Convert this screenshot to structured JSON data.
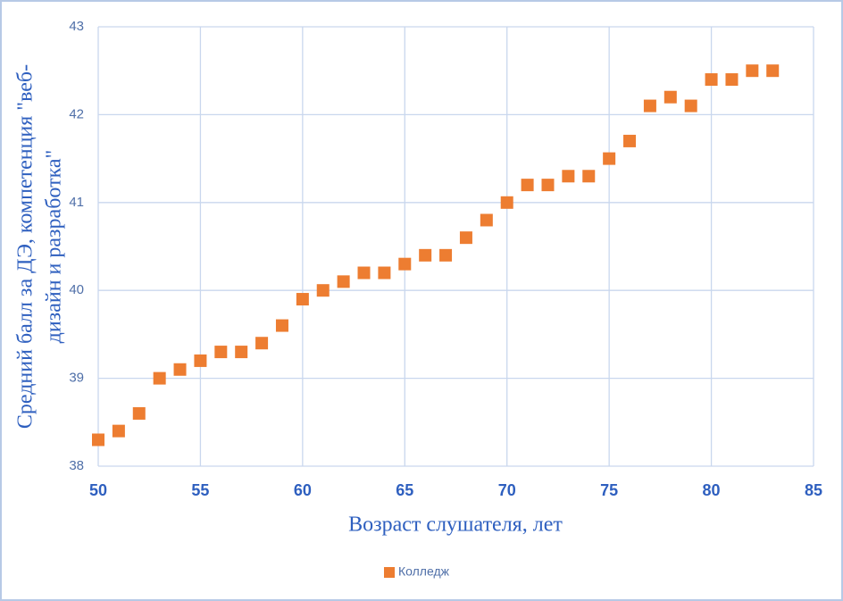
{
  "chart_data": {
    "type": "scatter",
    "xlabel": "Возраст слушателя,  лет",
    "ylabel": [
      "Средний балл за ДЭ, компетенция \"веб-",
      "дизайн и разработка\""
    ],
    "series": [
      {
        "name": "Колледж",
        "color": "#ed7d31",
        "x": [
          50,
          51,
          52,
          53,
          54,
          55,
          56,
          57,
          58,
          59,
          60,
          61,
          62,
          63,
          64,
          65,
          66,
          67,
          68,
          69,
          70,
          71,
          72,
          73,
          74,
          75,
          76,
          77,
          78,
          79,
          80,
          81,
          82,
          83
        ],
        "values": [
          38.3,
          38.4,
          38.6,
          39.0,
          39.1,
          39.2,
          39.3,
          39.3,
          39.4,
          39.6,
          39.9,
          40.0,
          40.1,
          40.2,
          40.2,
          40.3,
          40.4,
          40.4,
          40.6,
          40.8,
          41.0,
          41.2,
          41.2,
          41.3,
          41.3,
          41.5,
          41.7,
          42.1,
          42.2,
          42.1,
          42.4,
          42.4,
          42.5,
          42.5
        ]
      }
    ],
    "xlim": [
      50,
      85
    ],
    "xticks": [
      50,
      55,
      60,
      65,
      70,
      75,
      80,
      85
    ],
    "ylim": [
      38,
      43
    ],
    "yticks": [
      38,
      39,
      40,
      41,
      42,
      43
    ],
    "grid": true,
    "legend": "bottom"
  }
}
